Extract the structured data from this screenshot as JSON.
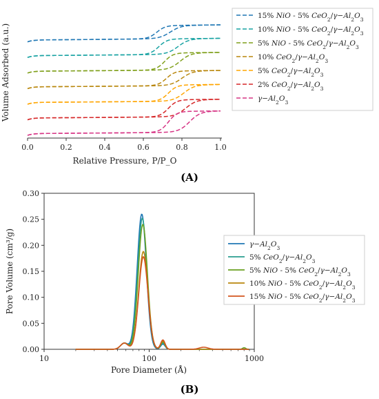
{
  "panel_a": {
    "label": "(A)",
    "xlabel": "Relative Pressure, P/P_O",
    "ylabel": "Volume Adsorbed (a.u.)"
  },
  "panel_b": {
    "label": "(B)",
    "xlabel": "Pore Diameter (Å)",
    "ylabel": "Pore Volume (cm³/g)"
  },
  "chart_data": [
    {
      "type": "line",
      "title": "",
      "xlabel": "Relative Pressure, P/P_O",
      "ylabel": "Volume Adsorbed (a.u.)",
      "xlim": [
        0.0,
        1.0
      ],
      "xticks": [
        "0.0",
        "0.2",
        "0.4",
        "0.6",
        "0.8",
        "1.0"
      ],
      "legend": "right",
      "line_style": "dashed",
      "series": [
        {
          "name": "15% NiO - 5% CeO2/γ−Al2O3",
          "color": "#1f77b4",
          "offset": 6,
          "base": 0.55,
          "rise": 0.85,
          "x_adsorption": 0.74,
          "x_desorption": 0.67
        },
        {
          "name": "10% NiO - 5% CeO2/γ−Al2O3",
          "color": "#17a2a2",
          "offset": 5,
          "base": 0.5,
          "rise": 1.0,
          "x_adsorption": 0.78,
          "x_desorption": 0.68
        },
        {
          "name": "5% NiO - 5% CeO2/γ−Al2O3",
          "color": "#7f9f1a",
          "offset": 4,
          "base": 0.48,
          "rise": 1.1,
          "x_adsorption": 0.79,
          "x_desorption": 0.71
        },
        {
          "name": "10% CeO2/γ−Al2O3",
          "color": "#b8860b",
          "offset": 3,
          "base": 0.45,
          "rise": 0.95,
          "x_adsorption": 0.8,
          "x_desorption": 0.72
        },
        {
          "name": "5% CeO2/γ−Al2O3",
          "color": "#ffa500",
          "offset": 2,
          "base": 0.45,
          "rise": 1.05,
          "x_adsorption": 0.81,
          "x_desorption": 0.73
        },
        {
          "name": "2% CeO2/γ−Al2O3",
          "color": "#d62728",
          "offset": 1,
          "base": 0.45,
          "rise": 1.1,
          "x_adsorption": 0.82,
          "x_desorption": 0.73
        },
        {
          "name": "γ−Al2O3",
          "color": "#d63384",
          "offset": 0,
          "base": 0.45,
          "rise": 1.35,
          "x_adsorption": 0.84,
          "x_desorption": 0.73
        }
      ]
    },
    {
      "type": "line",
      "title": "",
      "xlabel": "Pore Diameter (Å)",
      "ylabel": "Pore Volume (cm³/g)",
      "xscale": "log",
      "xlim": [
        10,
        1000
      ],
      "ylim": [
        0,
        0.3
      ],
      "xticks": [
        "10",
        "100",
        "1000"
      ],
      "yticks": [
        "0.00",
        "0.05",
        "0.10",
        "0.15",
        "0.20",
        "0.25",
        "0.30"
      ],
      "legend": "right",
      "series": [
        {
          "name": "γ−Al2O3",
          "color": "#1f77b4",
          "peak_diameter": 85,
          "peak_value": 0.26
        },
        {
          "name": "5% CeO2/γ−Al2O3",
          "color": "#2a9d8f",
          "peak_diameter": 86,
          "peak_value": 0.252
        },
        {
          "name": "5% NiO - 5% CeO2/γ−Al2O3",
          "color": "#6aa121",
          "peak_diameter": 87,
          "peak_value": 0.24
        },
        {
          "name": "10% NiO - 5% CeO2/γ−Al2O3",
          "color": "#b8860b",
          "peak_diameter": 88,
          "peak_value": 0.188
        },
        {
          "name": "15% NiO - 5% CeO2/γ−Al2O3",
          "color": "#d2541e",
          "peak_diameter": 88,
          "peak_value": 0.178
        }
      ]
    }
  ]
}
